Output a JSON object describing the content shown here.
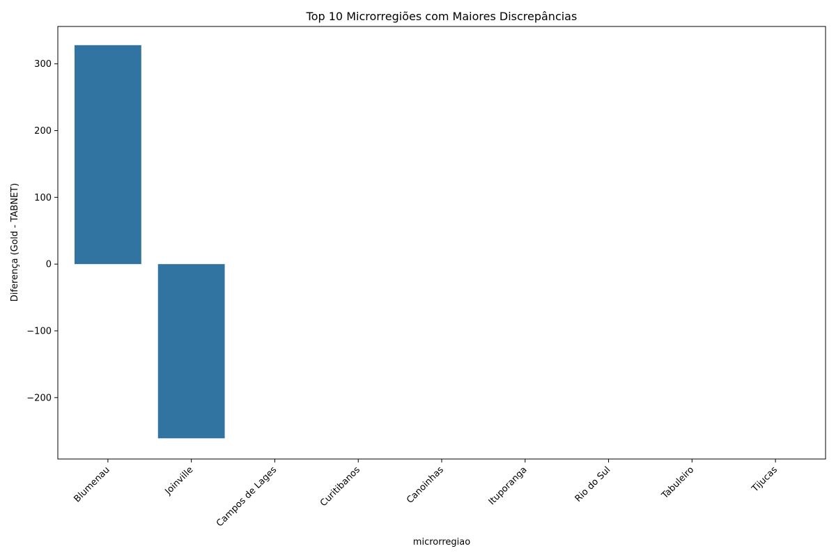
{
  "chart_data": {
    "type": "bar",
    "title": "Top 10 Microrregiões com Maiores Discrepâncias",
    "xlabel": "microrregiao",
    "ylabel": "Diferença (Gold - TABNET)",
    "categories": [
      "Blumenau",
      "Joinville",
      "Campos de Lages",
      "Curitibanos",
      "Canoinhas",
      "Ituporanga",
      "Rio do Sul",
      "Tabuleiro",
      "Tijucas"
    ],
    "values": [
      328,
      -261,
      0,
      0,
      0,
      0,
      0,
      0,
      0
    ],
    "ylim": [
      -292,
      356
    ],
    "yticks": [
      -200,
      -100,
      0,
      100,
      200,
      300
    ],
    "ytick_labels": [
      "−200",
      "−100",
      "0",
      "100",
      "200",
      "300"
    ],
    "grid": false,
    "legend": "none",
    "bar_color": "#3274a1"
  }
}
